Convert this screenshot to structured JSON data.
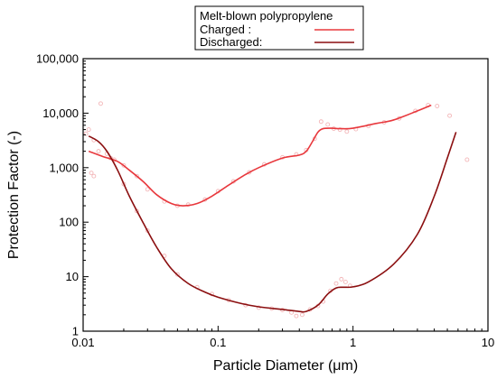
{
  "chart_data": {
    "type": "line",
    "xlabel": "Particle Diameter (μm)",
    "ylabel": "Protection Factor (-)",
    "x_scale": "log",
    "y_scale": "log",
    "xlim": [
      0.01,
      10
    ],
    "ylim": [
      1,
      100000
    ],
    "x_ticks": [
      0.01,
      0.1,
      1,
      10
    ],
    "x_tick_labels": [
      "0.01",
      "0.1",
      "1",
      "10"
    ],
    "y_ticks": [
      1,
      10,
      100,
      1000,
      10000,
      100000
    ],
    "y_tick_labels": [
      "1",
      "10",
      "100",
      "1,000",
      "10,000",
      "100,000"
    ],
    "grid": false,
    "legend": {
      "title": "Melt-blown polypropylene",
      "placement": "top-center, above plot",
      "entries": [
        "Charged      :",
        "Discharged:"
      ]
    },
    "series": [
      {
        "name": "Charged",
        "color": "#e8383d",
        "scatter_color": "#f3b6b8",
        "x": [
          0.011,
          0.014,
          0.018,
          0.022,
          0.028,
          0.035,
          0.045,
          0.055,
          0.07,
          0.09,
          0.12,
          0.16,
          0.2,
          0.3,
          0.4,
          0.45,
          0.5,
          0.55,
          0.6,
          0.7,
          0.8,
          1.0,
          1.5,
          2.0,
          3.0,
          3.8
        ],
        "y": [
          2000,
          1600,
          1300,
          900,
          550,
          320,
          220,
          200,
          220,
          300,
          480,
          750,
          1000,
          1500,
          1700,
          2000,
          3000,
          4500,
          5200,
          5300,
          5200,
          5300,
          6500,
          7500,
          11000,
          14000
        ],
        "scatter_x": [
          0.0105,
          0.011,
          0.0115,
          0.012,
          0.013,
          0.0135,
          0.015,
          0.017,
          0.02,
          0.025,
          0.03,
          0.04,
          0.05,
          0.06,
          0.08,
          0.1,
          0.13,
          0.17,
          0.22,
          0.3,
          0.38,
          0.45,
          0.52,
          0.58,
          0.65,
          0.72,
          0.8,
          0.9,
          1.05,
          1.3,
          1.7,
          2.2,
          2.9,
          3.6,
          4.2,
          5.2,
          7.0
        ],
        "scatter_y": [
          4200,
          5000,
          800,
          700,
          2000,
          15000,
          1800,
          1400,
          1100,
          700,
          400,
          240,
          200,
          210,
          260,
          370,
          560,
          820,
          1150,
          1550,
          1750,
          2100,
          3400,
          7000,
          6200,
          5200,
          5000,
          4600,
          5100,
          5800,
          6800,
          8000,
          11000,
          14000,
          13500,
          9000,
          1400
        ]
      },
      {
        "name": "Discharged",
        "color": "#8b0f10",
        "scatter_color": "#f3b6b8",
        "x": [
          0.011,
          0.013,
          0.015,
          0.018,
          0.022,
          0.028,
          0.035,
          0.045,
          0.06,
          0.08,
          0.1,
          0.15,
          0.2,
          0.3,
          0.4,
          0.45,
          0.55,
          0.65,
          0.75,
          0.85,
          1.0,
          1.3,
          2.0,
          3.0,
          4.0,
          5.0,
          5.8
        ],
        "y": [
          3800,
          3000,
          2000,
          900,
          300,
          95,
          35,
          14,
          7.5,
          5.2,
          4.2,
          3.2,
          2.8,
          2.5,
          2.3,
          2.3,
          3.0,
          4.8,
          6.2,
          6.4,
          6.5,
          8.0,
          17,
          60,
          300,
          1500,
          4500
        ],
        "scatter_x": [
          0.012,
          0.016,
          0.02,
          0.025,
          0.03,
          0.04,
          0.05,
          0.07,
          0.09,
          0.12,
          0.16,
          0.2,
          0.25,
          0.3,
          0.35,
          0.38,
          0.42,
          0.48,
          0.55,
          0.6,
          0.68,
          0.75,
          0.82,
          0.88,
          0.95
        ],
        "scatter_y": [
          3200,
          1500,
          500,
          160,
          70,
          24,
          11,
          6.4,
          4.8,
          3.7,
          3.0,
          2.7,
          2.6,
          2.45,
          2.2,
          1.9,
          2.0,
          2.5,
          2.9,
          3.5,
          5.5,
          7.5,
          9.0,
          8.0,
          6.8
        ]
      }
    ]
  }
}
